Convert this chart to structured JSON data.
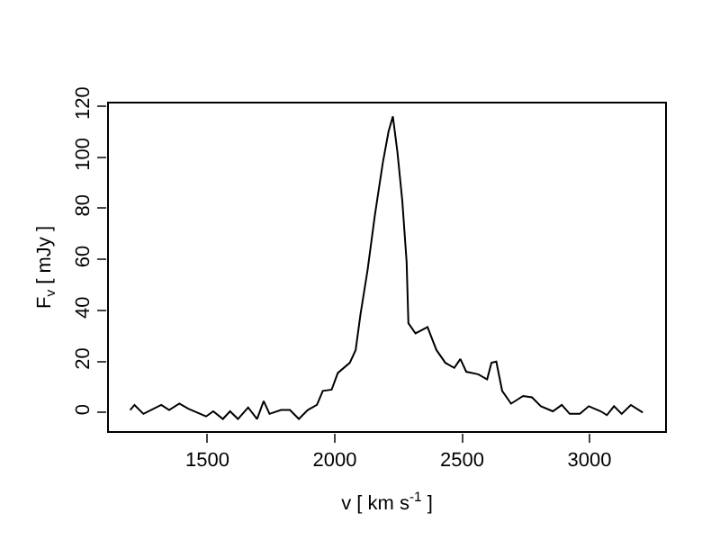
{
  "chart_data": {
    "type": "line",
    "xlabel": "v [ km s$^{-1}$ ]",
    "ylabel": "F$_{v}$ [ mJy ]",
    "x": [
      1197,
      1214,
      1249,
      1319,
      1350,
      1390,
      1425,
      1495,
      1523,
      1561,
      1589,
      1620,
      1660,
      1695,
      1721,
      1744,
      1789,
      1824,
      1859,
      1894,
      1930,
      1953,
      1988,
      2012,
      2059,
      2082,
      2101,
      2129,
      2157,
      2188,
      2211,
      2228,
      2246,
      2265,
      2282,
      2289,
      2317,
      2364,
      2399,
      2434,
      2469,
      2493,
      2516,
      2563,
      2598,
      2615,
      2634,
      2657,
      2692,
      2739,
      2774,
      2809,
      2856,
      2891,
      2922,
      2962,
      2997,
      3044,
      3068,
      3096,
      3126,
      3162,
      3209
    ],
    "series": [
      {
        "color": "#000000",
        "values": [
          1,
          3,
          -0.5,
          3,
          1,
          3.5,
          1.5,
          -1.5,
          0.5,
          -2.5,
          0.5,
          -2.5,
          2,
          -2.5,
          4.5,
          -0.5,
          1,
          1,
          -2.5,
          1,
          3,
          8.5,
          9,
          15.5,
          19.5,
          24.5,
          38.5,
          56,
          77,
          97.5,
          110,
          116,
          102,
          83,
          59,
          35,
          31,
          33.5,
          24.5,
          19.5,
          17.5,
          21,
          16,
          15,
          13,
          19.5,
          20,
          8.5,
          3.5,
          6.5,
          6,
          2.5,
          0.5,
          3,
          -0.5,
          -0.5,
          2.5,
          0.5,
          -1,
          2.5,
          -0.5,
          3,
          0
        ]
      }
    ],
    "xlim": [
      1110,
      3300
    ],
    "ylim": [
      -7.6,
      121.4
    ],
    "xticks": [
      1500,
      2000,
      2500,
      3000
    ],
    "yticks": [
      0,
      20,
      40,
      60,
      80,
      100,
      120
    ],
    "grid": false,
    "marker": "none",
    "line_style": "solid"
  }
}
